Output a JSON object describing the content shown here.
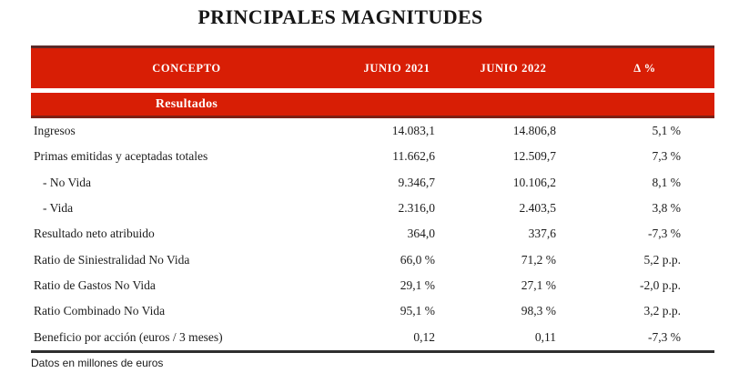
{
  "title": "PRINCIPALES MAGNITUDES",
  "colors": {
    "brand_red": "#D81E05",
    "header_top_border": "#5A2A28",
    "section_bottom_border": "#7E2014",
    "body_text": "#1c1c1c"
  },
  "table": {
    "columns": [
      "CONCEPTO",
      "JUNIO 2021",
      "JUNIO 2022",
      "Δ %"
    ],
    "section_label": "Resultados",
    "rows": [
      {
        "concepto": "Ingresos",
        "indent": false,
        "junio_2021": "14.083,1",
        "junio_2022": "14.806,8",
        "delta": "5,1 %"
      },
      {
        "concepto": "Primas emitidas y aceptadas totales",
        "indent": false,
        "junio_2021": "11.662,6",
        "junio_2022": "12.509,7",
        "delta": "7,3 %"
      },
      {
        "concepto": "- No Vida",
        "indent": true,
        "junio_2021": "9.346,7",
        "junio_2022": "10.106,2",
        "delta": "8,1 %"
      },
      {
        "concepto": "- Vida",
        "indent": true,
        "junio_2021": "2.316,0",
        "junio_2022": "2.403,5",
        "delta": "3,8 %"
      },
      {
        "concepto": "Resultado neto atribuido",
        "indent": false,
        "junio_2021": "364,0",
        "junio_2022": "337,6",
        "delta": "-7,3 %"
      },
      {
        "concepto": "Ratio de Siniestralidad No Vida",
        "indent": false,
        "junio_2021": "66,0 %",
        "junio_2022": "71,2 %",
        "delta": "5,2 p.p."
      },
      {
        "concepto": "Ratio de Gastos No Vida",
        "indent": false,
        "junio_2021": "29,1 %",
        "junio_2022": "27,1 %",
        "delta": "-2,0 p.p."
      },
      {
        "concepto": "Ratio Combinado No Vida",
        "indent": false,
        "junio_2021": "95,1 %",
        "junio_2022": "98,3 %",
        "delta": "3,2 p.p."
      },
      {
        "concepto": "Beneficio por acción (euros / 3 meses)",
        "indent": false,
        "junio_2021": "0,12",
        "junio_2022": "0,11",
        "delta": "-7,3 %"
      }
    ],
    "footnote": "Datos en millones de euros"
  }
}
